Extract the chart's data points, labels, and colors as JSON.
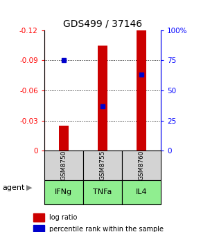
{
  "title": "GDS499 / 37146",
  "samples": [
    "GSM8750",
    "GSM8755",
    "GSM8760"
  ],
  "agents": [
    "IFNg",
    "TNFa",
    "IL4"
  ],
  "log_ratios": [
    -0.025,
    -0.105,
    -0.12
  ],
  "percentile_ranks": [
    75,
    37,
    63
  ],
  "bar_color": "#cc0000",
  "dot_color": "#0000cc",
  "ylim_left": [
    0,
    -0.12
  ],
  "ylim_right": [
    100,
    0
  ],
  "yticks_left": [
    0,
    -0.03,
    -0.06,
    -0.09,
    -0.12
  ],
  "yticks_right": [
    100,
    75,
    50,
    25,
    0
  ],
  "ytick_labels_right": [
    "100%",
    "75",
    "50",
    "25",
    "0"
  ],
  "sample_box_color": "#d3d3d3",
  "agent_box_color": "#90ee90",
  "legend_red_label": "log ratio",
  "legend_blue_label": "percentile rank within the sample",
  "agent_label": "agent",
  "figsize": [
    2.9,
    3.36
  ],
  "dpi": 100
}
